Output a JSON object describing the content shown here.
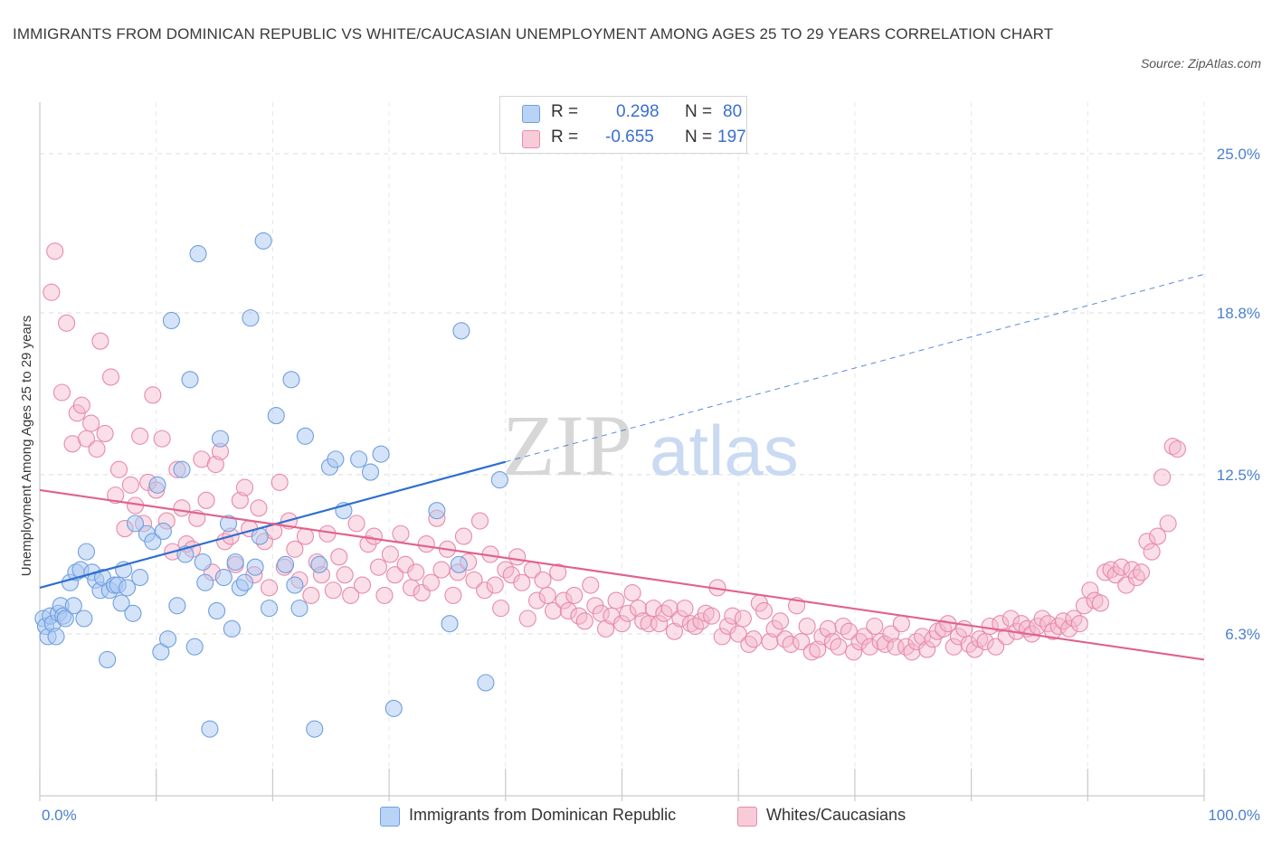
{
  "title": "IMMIGRANTS FROM DOMINICAN REPUBLIC VS WHITE/CAUCASIAN UNEMPLOYMENT AMONG AGES 25 TO 29 YEARS CORRELATION CHART",
  "source": "Source: ZipAtlas.com",
  "watermark": {
    "zip": "ZIP",
    "atlas": "atlas"
  },
  "legend": {
    "r_label": "R =",
    "n_label": "N =",
    "series1": {
      "r": "0.298",
      "n": "80"
    },
    "series2": {
      "r": "-0.655",
      "n": "197"
    }
  },
  "colors": {
    "blue_fill": "#a9c7f2",
    "blue_stroke": "#6f9fe0",
    "blue_line": "#2f6fce",
    "pink_fill": "#f5b9cc",
    "pink_stroke": "#e88aa8",
    "pink_line": "#e0628c",
    "tick_text": "#4a7fd0"
  },
  "chart_data": {
    "type": "scatter",
    "title": "IMMIGRANTS FROM DOMINICAN REPUBLIC VS WHITE/CAUCASIAN UNEMPLOYMENT AMONG AGES 25 TO 29 YEARS CORRELATION CHART",
    "xlabel": "",
    "ylabel": "Unemployment Among Ages 25 to 29 years",
    "xlim": [
      0,
      100
    ],
    "ylim": [
      0,
      27
    ],
    "x_tick_labels": [
      "0.0%",
      "100.0%"
    ],
    "y_ticks": [
      6.3,
      12.5,
      18.8,
      25.0
    ],
    "y_tick_labels": [
      "6.3%",
      "12.5%",
      "18.8%",
      "25.0%"
    ],
    "grid": true,
    "legend_position": "top-center",
    "series": [
      {
        "name": "Immigrants from Dominican Republic",
        "color": "#a9c7f2",
        "r": 0.298,
        "n": 80,
        "trend": {
          "x0": 0,
          "y0": 8.1,
          "x1": 40,
          "y1": 13.0,
          "extended_to": [
            100,
            20.3
          ]
        },
        "points": [
          [
            0.3,
            6.9
          ],
          [
            0.5,
            6.6
          ],
          [
            0.7,
            6.2
          ],
          [
            0.9,
            7.0
          ],
          [
            1.1,
            6.7
          ],
          [
            1.4,
            6.2
          ],
          [
            1.6,
            7.1
          ],
          [
            1.8,
            7.4
          ],
          [
            2.0,
            7.0
          ],
          [
            2.2,
            6.9
          ],
          [
            2.6,
            8.3
          ],
          [
            2.9,
            7.4
          ],
          [
            3.1,
            8.7
          ],
          [
            3.5,
            8.8
          ],
          [
            3.8,
            6.9
          ],
          [
            4.0,
            9.5
          ],
          [
            4.5,
            8.7
          ],
          [
            4.8,
            8.4
          ],
          [
            5.2,
            8.0
          ],
          [
            5.4,
            8.5
          ],
          [
            5.8,
            5.3
          ],
          [
            6.0,
            8.0
          ],
          [
            6.4,
            8.2
          ],
          [
            6.7,
            8.2
          ],
          [
            7.0,
            7.5
          ],
          [
            7.2,
            8.8
          ],
          [
            7.5,
            8.1
          ],
          [
            8.0,
            7.1
          ],
          [
            8.2,
            10.6
          ],
          [
            8.6,
            8.5
          ],
          [
            9.2,
            10.2
          ],
          [
            9.7,
            9.9
          ],
          [
            10.1,
            12.1
          ],
          [
            10.4,
            5.6
          ],
          [
            10.6,
            10.3
          ],
          [
            11.0,
            6.1
          ],
          [
            11.3,
            18.5
          ],
          [
            11.8,
            7.4
          ],
          [
            12.2,
            12.7
          ],
          [
            12.5,
            9.4
          ],
          [
            12.9,
            16.2
          ],
          [
            13.3,
            5.8
          ],
          [
            13.6,
            21.1
          ],
          [
            14.0,
            9.1
          ],
          [
            14.2,
            8.3
          ],
          [
            14.6,
            2.6
          ],
          [
            15.2,
            7.2
          ],
          [
            15.5,
            13.9
          ],
          [
            15.8,
            8.5
          ],
          [
            16.2,
            10.6
          ],
          [
            16.5,
            6.5
          ],
          [
            16.8,
            9.1
          ],
          [
            17.2,
            8.1
          ],
          [
            17.6,
            8.3
          ],
          [
            18.1,
            18.6
          ],
          [
            18.5,
            8.9
          ],
          [
            18.9,
            10.1
          ],
          [
            19.2,
            21.6
          ],
          [
            19.7,
            7.3
          ],
          [
            20.3,
            14.8
          ],
          [
            21.1,
            9.0
          ],
          [
            21.6,
            16.2
          ],
          [
            21.9,
            8.2
          ],
          [
            22.3,
            7.3
          ],
          [
            22.8,
            14.0
          ],
          [
            23.6,
            2.6
          ],
          [
            24.0,
            9.0
          ],
          [
            24.9,
            12.8
          ],
          [
            25.4,
            13.1
          ],
          [
            26.1,
            11.1
          ],
          [
            27.4,
            13.1
          ],
          [
            28.4,
            12.6
          ],
          [
            29.3,
            13.3
          ],
          [
            30.4,
            3.4
          ],
          [
            34.1,
            11.1
          ],
          [
            35.2,
            6.7
          ],
          [
            36.0,
            9.0
          ],
          [
            36.2,
            18.1
          ],
          [
            38.3,
            4.4
          ],
          [
            39.5,
            12.3
          ]
        ]
      },
      {
        "name": "Whites/Caucasians",
        "color": "#f5b9cc",
        "r": -0.655,
        "n": 197,
        "trend": {
          "x0": 0,
          "y0": 11.9,
          "x1": 100,
          "y1": 5.3
        },
        "points": [
          [
            1.0,
            19.6
          ],
          [
            1.3,
            21.2
          ],
          [
            1.9,
            15.7
          ],
          [
            2.3,
            18.4
          ],
          [
            2.8,
            13.7
          ],
          [
            3.2,
            14.9
          ],
          [
            3.6,
            15.2
          ],
          [
            4.0,
            13.9
          ],
          [
            4.4,
            14.5
          ],
          [
            4.9,
            13.5
          ],
          [
            5.2,
            17.7
          ],
          [
            5.6,
            14.1
          ],
          [
            6.1,
            16.3
          ],
          [
            6.5,
            11.7
          ],
          [
            6.8,
            12.7
          ],
          [
            7.3,
            10.4
          ],
          [
            7.8,
            12.1
          ],
          [
            8.2,
            11.3
          ],
          [
            8.6,
            14.0
          ],
          [
            8.9,
            10.6
          ],
          [
            9.3,
            12.2
          ],
          [
            9.7,
            15.6
          ],
          [
            10.0,
            11.9
          ],
          [
            10.5,
            13.9
          ],
          [
            10.9,
            10.7
          ],
          [
            11.4,
            9.5
          ],
          [
            11.8,
            12.7
          ],
          [
            12.2,
            11.2
          ],
          [
            12.6,
            9.8
          ],
          [
            13.1,
            9.6
          ],
          [
            13.5,
            10.8
          ],
          [
            13.9,
            13.1
          ],
          [
            14.3,
            11.5
          ],
          [
            14.8,
            8.7
          ],
          [
            15.1,
            12.9
          ],
          [
            15.5,
            13.4
          ],
          [
            15.9,
            9.9
          ],
          [
            16.4,
            10.1
          ],
          [
            16.8,
            9.0
          ],
          [
            17.2,
            11.5
          ],
          [
            17.6,
            12.0
          ],
          [
            18.0,
            10.4
          ],
          [
            18.4,
            8.6
          ],
          [
            18.8,
            11.2
          ],
          [
            19.3,
            9.9
          ],
          [
            19.7,
            8.1
          ],
          [
            20.1,
            10.3
          ],
          [
            20.6,
            12.2
          ],
          [
            21.0,
            8.9
          ],
          [
            21.4,
            10.7
          ],
          [
            21.9,
            9.6
          ],
          [
            22.3,
            8.4
          ],
          [
            22.8,
            10.1
          ],
          [
            23.3,
            7.8
          ],
          [
            23.8,
            9.1
          ],
          [
            24.2,
            8.6
          ],
          [
            24.7,
            10.2
          ],
          [
            25.2,
            8.0
          ],
          [
            25.7,
            9.3
          ],
          [
            26.2,
            8.6
          ],
          [
            26.7,
            7.8
          ],
          [
            27.2,
            10.6
          ],
          [
            27.7,
            8.2
          ],
          [
            28.2,
            9.8
          ],
          [
            28.7,
            10.1
          ],
          [
            29.1,
            8.9
          ],
          [
            29.6,
            7.8
          ],
          [
            30.1,
            9.4
          ],
          [
            30.5,
            8.6
          ],
          [
            31.0,
            10.2
          ],
          [
            31.4,
            9.0
          ],
          [
            31.9,
            8.1
          ],
          [
            32.3,
            8.7
          ],
          [
            32.8,
            7.9
          ],
          [
            33.2,
            9.8
          ],
          [
            33.6,
            8.3
          ],
          [
            34.1,
            10.8
          ],
          [
            34.5,
            8.8
          ],
          [
            35.0,
            9.6
          ],
          [
            35.5,
            7.8
          ],
          [
            35.9,
            8.7
          ],
          [
            36.4,
            10.1
          ],
          [
            36.8,
            9.1
          ],
          [
            37.3,
            8.4
          ],
          [
            37.8,
            10.7
          ],
          [
            38.2,
            8.0
          ],
          [
            38.7,
            9.4
          ],
          [
            39.1,
            8.2
          ],
          [
            39.6,
            7.3
          ],
          [
            40.0,
            8.8
          ],
          [
            40.5,
            8.6
          ],
          [
            41.0,
            9.3
          ],
          [
            41.4,
            8.3
          ],
          [
            41.9,
            6.9
          ],
          [
            42.3,
            8.8
          ],
          [
            42.7,
            7.6
          ],
          [
            43.2,
            8.4
          ],
          [
            43.6,
            7.8
          ],
          [
            44.1,
            7.2
          ],
          [
            44.5,
            8.7
          ],
          [
            45.0,
            7.6
          ],
          [
            45.4,
            7.2
          ],
          [
            45.9,
            7.8
          ],
          [
            46.3,
            7.0
          ],
          [
            46.8,
            6.8
          ],
          [
            47.3,
            8.2
          ],
          [
            47.7,
            7.4
          ],
          [
            48.2,
            7.1
          ],
          [
            48.6,
            6.5
          ],
          [
            49.1,
            7.0
          ],
          [
            49.5,
            7.6
          ],
          [
            50.0,
            6.7
          ],
          [
            50.5,
            7.1
          ],
          [
            50.9,
            7.9
          ],
          [
            51.4,
            7.3
          ],
          [
            51.8,
            6.8
          ],
          [
            52.3,
            6.7
          ],
          [
            52.7,
            7.3
          ],
          [
            53.2,
            6.7
          ],
          [
            53.6,
            7.1
          ],
          [
            54.1,
            7.3
          ],
          [
            54.5,
            6.4
          ],
          [
            55.0,
            6.9
          ],
          [
            55.4,
            7.3
          ],
          [
            55.9,
            6.7
          ],
          [
            56.3,
            6.6
          ],
          [
            56.8,
            6.8
          ],
          [
            57.2,
            7.1
          ],
          [
            57.7,
            7.0
          ],
          [
            58.2,
            8.1
          ],
          [
            58.6,
            6.2
          ],
          [
            59.1,
            6.6
          ],
          [
            59.5,
            7.0
          ],
          [
            60.0,
            6.3
          ],
          [
            60.4,
            6.9
          ],
          [
            60.9,
            5.9
          ],
          [
            61.3,
            6.1
          ],
          [
            61.8,
            7.5
          ],
          [
            62.2,
            7.2
          ],
          [
            62.7,
            6.0
          ],
          [
            63.1,
            6.5
          ],
          [
            63.6,
            6.8
          ],
          [
            64.0,
            6.1
          ],
          [
            64.5,
            5.9
          ],
          [
            65.0,
            7.4
          ],
          [
            65.4,
            6.0
          ],
          [
            65.9,
            6.6
          ],
          [
            66.3,
            5.6
          ],
          [
            66.8,
            5.7
          ],
          [
            67.2,
            6.2
          ],
          [
            67.7,
            6.5
          ],
          [
            68.1,
            6.0
          ],
          [
            68.6,
            5.8
          ],
          [
            69.0,
            6.6
          ],
          [
            69.5,
            6.4
          ],
          [
            69.9,
            5.6
          ],
          [
            70.4,
            6.0
          ],
          [
            70.8,
            6.2
          ],
          [
            71.3,
            5.8
          ],
          [
            71.7,
            6.6
          ],
          [
            72.2,
            6.0
          ],
          [
            72.6,
            5.9
          ],
          [
            73.1,
            6.3
          ],
          [
            73.5,
            5.8
          ],
          [
            74.0,
            6.7
          ],
          [
            74.4,
            5.8
          ],
          [
            74.9,
            5.6
          ],
          [
            75.3,
            6.0
          ],
          [
            75.8,
            6.2
          ],
          [
            76.2,
            5.7
          ],
          [
            76.7,
            6.1
          ],
          [
            77.1,
            6.4
          ],
          [
            77.6,
            6.5
          ],
          [
            78.0,
            6.7
          ],
          [
            78.5,
            5.8
          ],
          [
            78.9,
            6.2
          ],
          [
            79.4,
            6.5
          ],
          [
            79.8,
            5.9
          ],
          [
            80.3,
            5.7
          ],
          [
            80.7,
            6.1
          ],
          [
            81.2,
            6.0
          ],
          [
            81.6,
            6.6
          ],
          [
            82.1,
            5.8
          ],
          [
            82.5,
            6.7
          ],
          [
            83.0,
            6.2
          ],
          [
            83.4,
            6.9
          ],
          [
            83.9,
            6.4
          ],
          [
            84.3,
            6.7
          ],
          [
            84.8,
            6.5
          ],
          [
            85.2,
            6.3
          ],
          [
            85.7,
            6.6
          ],
          [
            86.1,
            6.9
          ],
          [
            86.6,
            6.7
          ],
          [
            87.0,
            6.4
          ],
          [
            87.5,
            6.6
          ],
          [
            87.9,
            6.8
          ],
          [
            88.4,
            6.5
          ],
          [
            88.8,
            6.9
          ],
          [
            89.3,
            6.7
          ],
          [
            89.7,
            7.4
          ],
          [
            90.2,
            8.0
          ],
          [
            90.6,
            7.6
          ],
          [
            91.1,
            7.5
          ],
          [
            91.5,
            8.7
          ],
          [
            92.0,
            8.8
          ],
          [
            92.4,
            8.6
          ],
          [
            92.9,
            8.9
          ],
          [
            93.3,
            8.2
          ],
          [
            93.8,
            8.8
          ],
          [
            94.2,
            8.5
          ],
          [
            94.6,
            8.7
          ],
          [
            95.1,
            9.9
          ],
          [
            95.5,
            9.5
          ],
          [
            96.0,
            10.1
          ],
          [
            96.4,
            12.4
          ],
          [
            96.9,
            10.6
          ],
          [
            97.3,
            13.6
          ],
          [
            97.7,
            13.5
          ]
        ]
      }
    ]
  },
  "bottom_legend": {
    "series1_label": "Immigrants from Dominican Republic",
    "series2_label": "Whites/Caucasians"
  }
}
